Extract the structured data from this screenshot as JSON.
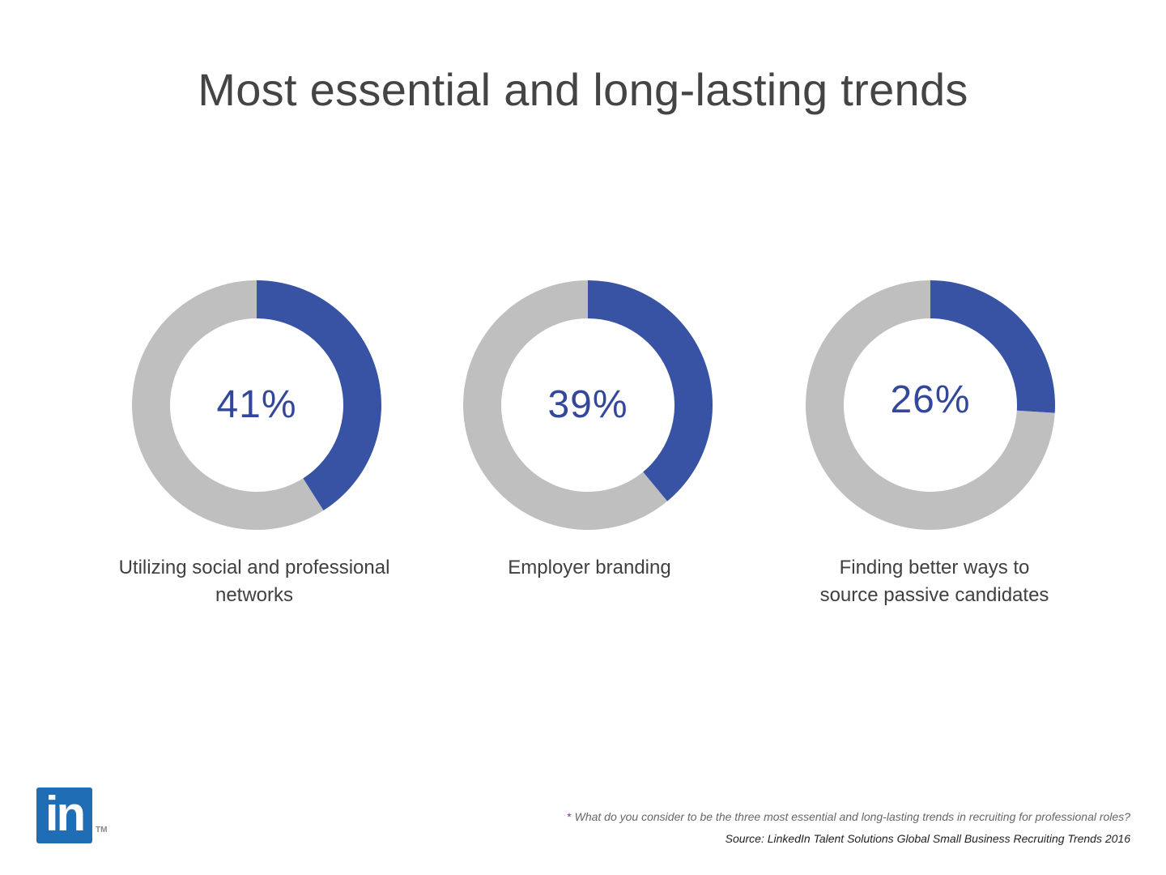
{
  "title": "Most essential and long-lasting trends",
  "colors": {
    "highlight": "#3953a4",
    "remainder": "#bfbfbf",
    "value_text": "#34489b"
  },
  "chart_data": {
    "type": "pie",
    "charts": [
      {
        "value": 41,
        "label_text": "41%",
        "caption": "Utilizing social and professional networks"
      },
      {
        "value": 39,
        "label_text": "39%",
        "caption": "Employer branding"
      },
      {
        "value": 26,
        "label_text": "26%",
        "caption": "Finding better ways to source passive candidates"
      }
    ]
  },
  "logo": {
    "text": "in",
    "trademark": "TM",
    "icon": "linkedin-logo-icon"
  },
  "footnote": {
    "asterisk": "*",
    "text": "What do you consider to be the three most essential and long-lasting trends in recruiting for professional roles?"
  },
  "source": "Source: LinkedIn Talent Solutions Global Small Business Recruiting Trends 2016"
}
